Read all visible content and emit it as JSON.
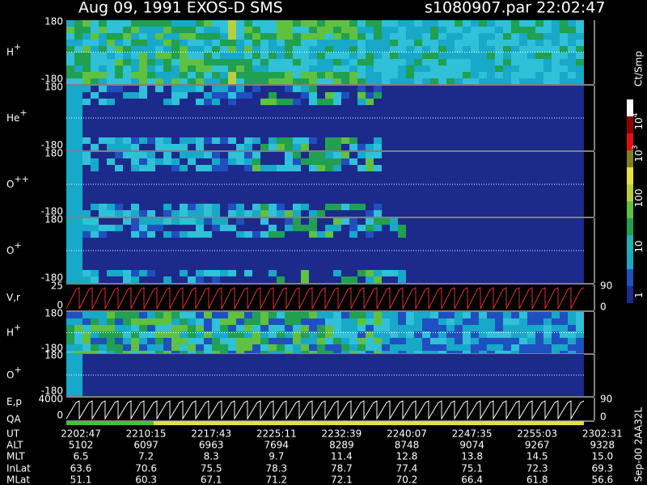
{
  "header": {
    "title": "Aug 09, 1991   EXOS-D SMS",
    "file": "s1080907.par  22:02:47"
  },
  "panels": [
    {
      "label": "H",
      "sup": "+",
      "ticks": [
        180,
        -180
      ]
    },
    {
      "label": "He",
      "sup": "+",
      "ticks": [
        180,
        -180
      ]
    },
    {
      "label": "O",
      "sup": "++",
      "ticks": [
        180,
        -180
      ]
    },
    {
      "label": "O",
      "sup": "+",
      "ticks": [
        180,
        -180
      ]
    },
    {
      "label": "V,r",
      "ticks": [
        25,
        0
      ],
      "right_ticks": [
        90,
        0
      ]
    },
    {
      "label": "H",
      "sup": "+",
      "ticks": [
        180,
        -180
      ]
    },
    {
      "label": "O",
      "sup": "+",
      "ticks": [
        180,
        -180
      ]
    },
    {
      "label": "E,p",
      "label2": "QA",
      "ticks": [
        4000,
        0
      ],
      "right_ticks": [
        90,
        0
      ]
    }
  ],
  "colorbar": {
    "unit": "Ct/Smp",
    "labels": [
      {
        "base": "10",
        "sup": "4"
      },
      {
        "base": "10",
        "sup": "3"
      },
      {
        "base": "100"
      },
      {
        "base": "10"
      },
      {
        "base": "1"
      }
    ]
  },
  "note": "Sep-00  2AA32L",
  "table": {
    "row_labels": [
      "UT",
      "ALT",
      "MLT",
      "InLat",
      "MLat"
    ],
    "rows": [
      [
        "2202:47",
        "2210:15",
        "2217:43",
        "2225:11",
        "2232:39",
        "2240:07",
        "2247:35",
        "2255:03",
        "2302:31"
      ],
      [
        "5102",
        "6097",
        "6963",
        "7694",
        "8289",
        "8748",
        "9074",
        "9267",
        "9328"
      ],
      [
        "6.5",
        "7.2",
        "8.3",
        "9.7",
        "11.4",
        "12.8",
        "13.8",
        "14.5",
        "15.0"
      ],
      [
        "63.6",
        "70.6",
        "75.5",
        "78.3",
        "78.7",
        "77.4",
        "75.1",
        "72.3",
        "69.3"
      ],
      [
        "51.1",
        "60.3",
        "67.1",
        "71.2",
        "72.1",
        "70.2",
        "66.4",
        "61.8",
        "56.6"
      ]
    ]
  }
}
